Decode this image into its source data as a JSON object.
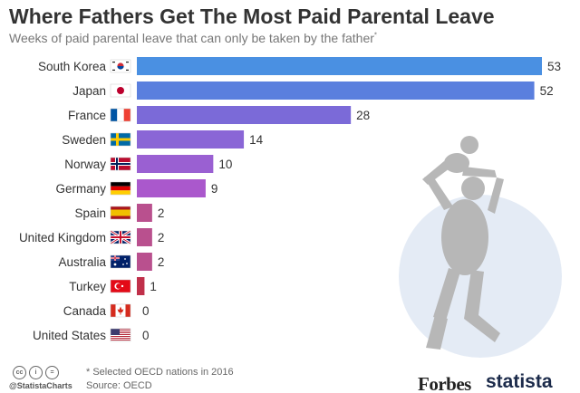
{
  "title": "Where Fathers Get The Most Paid Parental Leave",
  "subtitle": "Weeks of paid parental leave that can only be taken by the father",
  "subtitle_mark": "*",
  "footer": {
    "note": "* Selected OECD nations in 2016",
    "source": "Source: OECD",
    "handle": "@StatistaCharts",
    "cc_icons": [
      "cc",
      "i",
      "="
    ]
  },
  "logos": {
    "forbes": "Forbes",
    "statista": "statista"
  },
  "chart_data": {
    "type": "bar",
    "orientation": "horizontal",
    "categories": [
      "South Korea",
      "Japan",
      "France",
      "Sweden",
      "Norway",
      "Germany",
      "Spain",
      "United Kingdom",
      "Australia",
      "Turkey",
      "Canada",
      "United States"
    ],
    "values": [
      53,
      52,
      28,
      14,
      10,
      9,
      2,
      2,
      2,
      1,
      0,
      0
    ],
    "colors": [
      "#4a90e2",
      "#5a7fde",
      "#7b6ad8",
      "#8a66d6",
      "#9a60d2",
      "#aa58cc",
      "#b9508e",
      "#b9508e",
      "#b9508e",
      "#c0304a",
      "#c0304a",
      "#c0304a"
    ],
    "flags": [
      "south-korea",
      "japan",
      "france",
      "sweden",
      "norway",
      "germany",
      "spain",
      "united-kingdom",
      "australia",
      "turkey",
      "canada",
      "united-states"
    ],
    "grid": false,
    "legend": "none"
  }
}
